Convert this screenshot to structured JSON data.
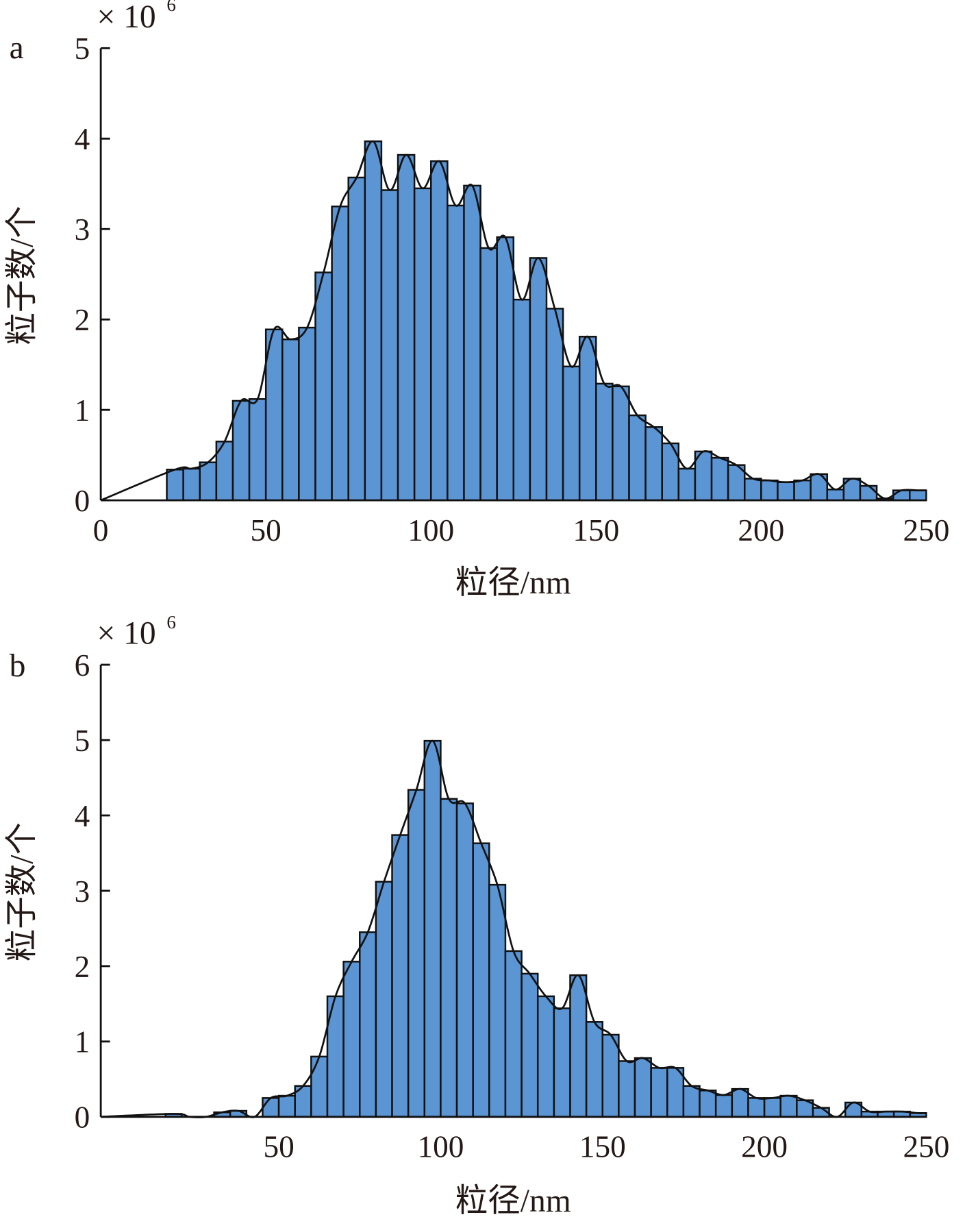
{
  "chart_data": [
    {
      "type": "bar",
      "panel_label": "a",
      "multiplier": "× 10",
      "multiplier_exp": "6",
      "xlabel": "粒径/nm",
      "ylabel": "粒子数/个",
      "xlim": [
        0,
        250
      ],
      "ylim": [
        0,
        5
      ],
      "xticks": [
        "0",
        "50",
        "100",
        "150",
        "200",
        "250"
      ],
      "xtick_values": [
        0,
        50,
        100,
        150,
        200,
        250
      ],
      "yticks": [
        "0",
        "1",
        "2",
        "3",
        "4",
        "5"
      ],
      "bin_width": 5,
      "bin_start": 20,
      "values": [
        0.34,
        0.35,
        0.42,
        0.65,
        1.1,
        1.12,
        1.89,
        1.78,
        1.91,
        2.52,
        3.25,
        3.57,
        3.97,
        3.43,
        3.82,
        3.45,
        3.75,
        3.26,
        3.48,
        2.79,
        2.91,
        2.22,
        2.68,
        2.12,
        1.48,
        1.81,
        1.29,
        1.26,
        0.94,
        0.81,
        0.63,
        0.35,
        0.54,
        0.47,
        0.39,
        0.24,
        0.22,
        0.2,
        0.22,
        0.29,
        0.12,
        0.24,
        0.16,
        0.02,
        0.11,
        0.11
      ],
      "bar_color": "#5b95d3",
      "line": "smoothed envelope through bar tops"
    },
    {
      "type": "bar",
      "panel_label": "b",
      "multiplier": "× 10",
      "multiplier_exp": "6",
      "xlabel": "粒径/nm",
      "ylabel": "粒子数/个",
      "xlim": [
        -5,
        250
      ],
      "ylim": [
        0,
        6
      ],
      "xticks": [
        "50",
        "100",
        "150",
        "200",
        "250"
      ],
      "xtick_values": [
        50,
        100,
        150,
        200,
        250
      ],
      "yticks": [
        "0",
        "1",
        "2",
        "3",
        "4",
        "5",
        "6"
      ],
      "bin_width": 5,
      "bin_start": 15,
      "values": [
        0.04,
        0.0,
        0.0,
        0.06,
        0.08,
        0.0,
        0.25,
        0.28,
        0.41,
        0.8,
        1.6,
        2.06,
        2.45,
        3.12,
        3.74,
        4.34,
        4.99,
        4.22,
        4.16,
        3.63,
        3.08,
        2.2,
        1.9,
        1.6,
        1.44,
        1.88,
        1.26,
        1.09,
        0.74,
        0.78,
        0.65,
        0.65,
        0.41,
        0.35,
        0.29,
        0.37,
        0.25,
        0.25,
        0.28,
        0.22,
        0.12,
        0.0,
        0.19,
        0.07,
        0.07,
        0.07,
        0.05
      ],
      "bar_color": "#5b95d3",
      "line": "smoothed envelope through bar tops"
    }
  ]
}
